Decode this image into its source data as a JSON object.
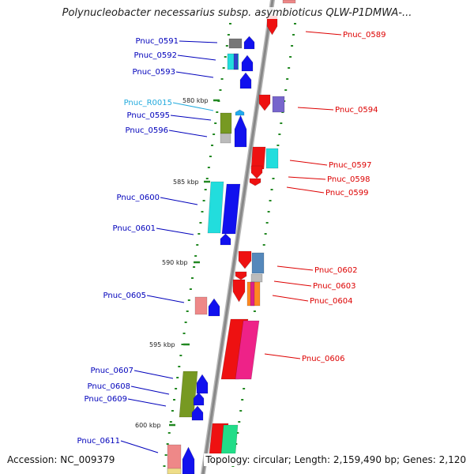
{
  "title": "Polynucleobacter necessarius subsp. asymbioticus QLW-P1DMWA-...",
  "footer": {
    "accession": "Accession: NC_009379",
    "topology": "Topology: circular; Length: 2,159,490 bp; Genes: 2,120"
  },
  "colors": {
    "left_label": "#0000bb",
    "right_label": "#dd0000",
    "rna_label": "#22aadd",
    "tick": "#228822",
    "backbone": "#888888"
  },
  "scale_labels": [
    "580 kbp",
    "585 kbp",
    "590 kbp",
    "595 kbp",
    "600 kbp"
  ],
  "left_labels": [
    {
      "text": "Pnuc_0591",
      "kind": "gene"
    },
    {
      "text": "Pnuc_0592",
      "kind": "gene"
    },
    {
      "text": "Pnuc_0593",
      "kind": "gene"
    },
    {
      "text": "Pnuc_R0015",
      "kind": "rna"
    },
    {
      "text": "Pnuc_0595",
      "kind": "gene"
    },
    {
      "text": "Pnuc_0596",
      "kind": "gene"
    },
    {
      "text": "Pnuc_0600",
      "kind": "gene"
    },
    {
      "text": "Pnuc_0601",
      "kind": "gene"
    },
    {
      "text": "Pnuc_0605",
      "kind": "gene"
    },
    {
      "text": "Pnuc_0607",
      "kind": "gene"
    },
    {
      "text": "Pnuc_0608",
      "kind": "gene"
    },
    {
      "text": "Pnuc_0609",
      "kind": "gene"
    },
    {
      "text": "Pnuc_0611",
      "kind": "gene"
    }
  ],
  "right_labels": [
    {
      "text": "Pnuc_0589"
    },
    {
      "text": "Pnuc_0594"
    },
    {
      "text": "Pnuc_0597"
    },
    {
      "text": "Pnuc_0598"
    },
    {
      "text": "Pnuc_0599"
    },
    {
      "text": "Pnuc_0602"
    },
    {
      "text": "Pnuc_0603"
    },
    {
      "text": "Pnuc_0604"
    },
    {
      "text": "Pnuc_0606"
    }
  ]
}
